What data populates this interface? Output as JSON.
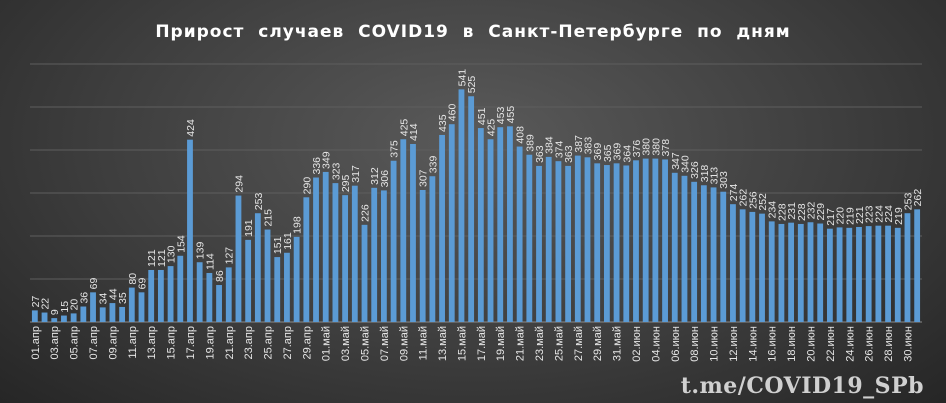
{
  "chart_data": {
    "type": "bar",
    "title": "Прирост  случаев  COVID19  в  Санкт-Петербурге  по  дням",
    "xlabel": "",
    "ylabel": "",
    "ylim": [
      0,
      600
    ],
    "grid": true,
    "legend": "none",
    "bar_color": "#5b9bd5",
    "categories": [
      "01.апр",
      "02.апр",
      "03.апр",
      "04.апр",
      "05.апр",
      "06.апр",
      "07.апр",
      "08.апр",
      "09.апр",
      "10.апр",
      "11.апр",
      "12.апр",
      "13.апр",
      "14.апр",
      "15.апр",
      "16.апр",
      "17.апр",
      "18.апр",
      "19.апр",
      "20.апр",
      "21.апр",
      "22.апр",
      "23.апр",
      "24.апр",
      "25.апр",
      "26.апр",
      "27.апр",
      "28.апр",
      "29.апр",
      "30.апр",
      "01.май",
      "02.май",
      "03.май",
      "04.май",
      "05.май",
      "06.май",
      "07.май",
      "08.май",
      "09.май",
      "10.май",
      "11.май",
      "12.май",
      "13.май",
      "14.май",
      "15.май",
      "16.май",
      "17.май",
      "18.май",
      "19.май",
      "20.май",
      "21.май",
      "22.май",
      "23.май",
      "24.май",
      "25.май",
      "26.май",
      "27.май",
      "28.май",
      "29.май",
      "30.май",
      "31.май",
      "01.июн",
      "02.июн",
      "03.июн",
      "04.июн",
      "05.июн",
      "06.июн",
      "07.июн",
      "08.июн",
      "09.июн",
      "10.июн",
      "11.июн",
      "12.июн",
      "13.июн",
      "14.июн",
      "15.июн",
      "16.июн",
      "17.июн",
      "18.июн",
      "19.июн",
      "20.июн",
      "21.июн",
      "22.июн",
      "23.июн",
      "24.июн",
      "25.июн",
      "26.июн",
      "27.июн",
      "28.июн",
      "29.июн",
      "30.июн",
      "01.июл"
    ],
    "values": [
      27,
      22,
      9,
      15,
      20,
      36,
      69,
      34,
      44,
      35,
      80,
      69,
      121,
      121,
      130,
      154,
      424,
      139,
      114,
      86,
      127,
      294,
      191,
      253,
      215,
      151,
      161,
      198,
      290,
      336,
      349,
      323,
      295,
      317,
      226,
      312,
      306,
      375,
      425,
      414,
      307,
      339,
      435,
      460,
      541,
      525,
      451,
      425,
      453,
      455,
      408,
      389,
      363,
      384,
      374,
      363,
      387,
      383,
      369,
      365,
      369,
      364,
      376,
      380,
      380,
      378,
      347,
      340,
      326,
      318,
      313,
      303,
      274,
      262,
      256,
      252,
      234,
      228,
      231,
      228,
      232,
      229,
      217,
      220,
      219,
      221,
      223,
      224,
      224,
      219,
      253,
      262
    ]
  },
  "watermark": "t.me/COVID19_SPb"
}
